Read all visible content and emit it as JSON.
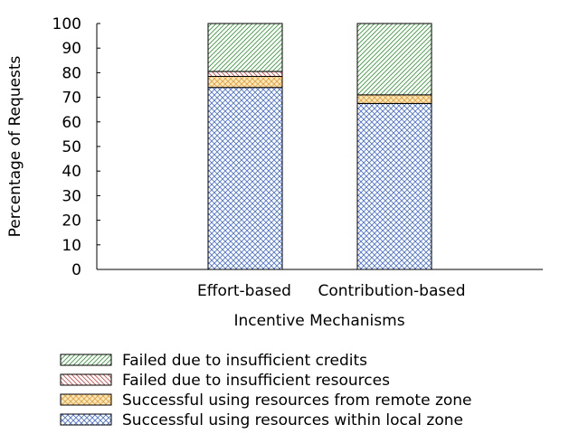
{
  "chart_data": {
    "type": "bar",
    "stacked": true,
    "title": "",
    "xlabel": "Incentive Mechanisms",
    "ylabel": "Percentage of Requests",
    "ylim": [
      0,
      100
    ],
    "yticks": [
      0,
      10,
      20,
      30,
      40,
      50,
      60,
      70,
      80,
      90,
      100
    ],
    "categories": [
      "Effort-based",
      "Contribution-based"
    ],
    "series": [
      {
        "name": "Successful using resources within local zone",
        "values": [
          74,
          67.5
        ],
        "color": "#4a6fd8",
        "pattern": "crosshatch"
      },
      {
        "name": "Successful using resources from remote zone",
        "values": [
          4.5,
          3.5
        ],
        "color": "#e6a23c",
        "pattern": "crosshatch"
      },
      {
        "name": "Failed due to insufficient resources",
        "values": [
          2,
          0
        ],
        "color": "#d94a4a",
        "pattern": "diagonal"
      },
      {
        "name": "Failed due to insufficient credits",
        "values": [
          19.5,
          29
        ],
        "color": "#3a9a3a",
        "pattern": "diagonal"
      }
    ],
    "legend_position": "bottom",
    "grid": false
  }
}
